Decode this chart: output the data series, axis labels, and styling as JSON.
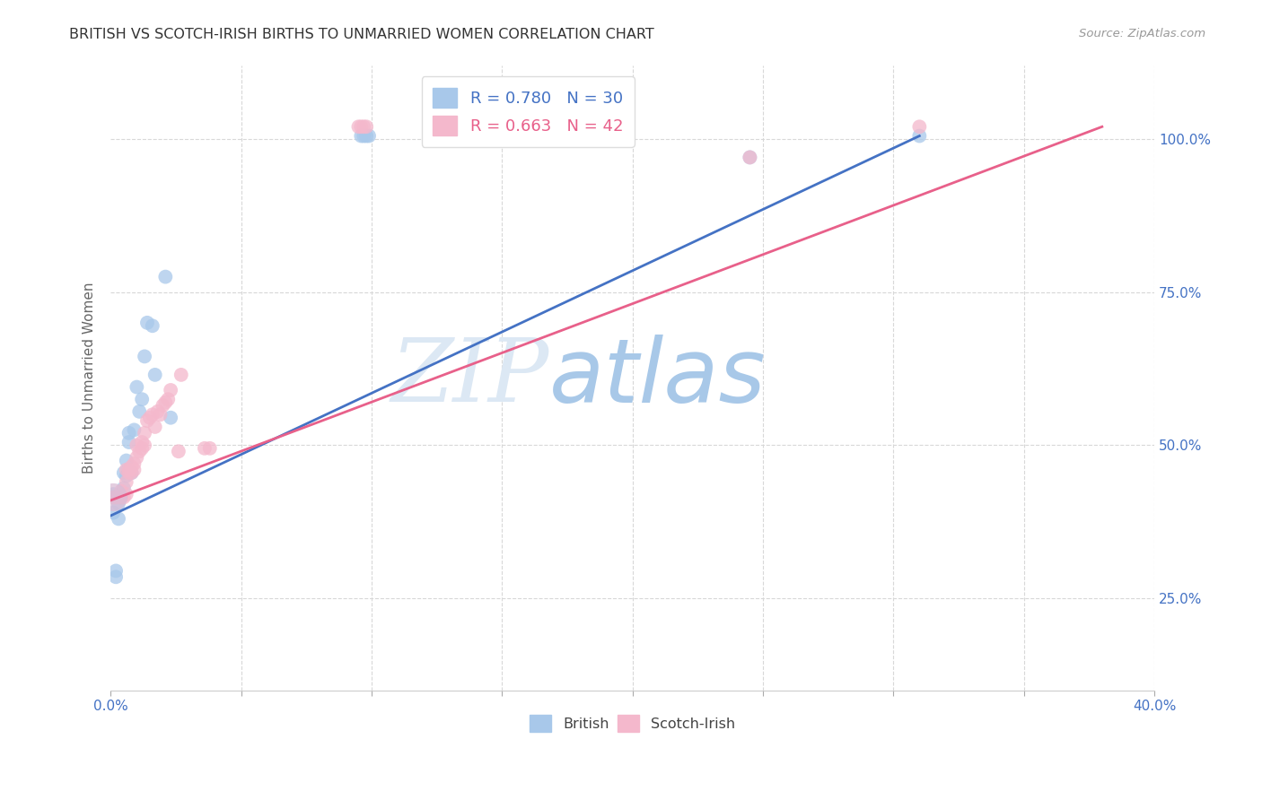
{
  "title": "BRITISH VS SCOTCH-IRISH BIRTHS TO UNMARRIED WOMEN CORRELATION CHART",
  "source": "Source: ZipAtlas.com",
  "ylabel": "Births to Unmarried Women",
  "ytick_labels": [
    "25.0%",
    "50.0%",
    "75.0%",
    "100.0%"
  ],
  "watermark_zip": "ZIP",
  "watermark_atlas": "atlas",
  "legend_british": "R = 0.780   N = 30",
  "legend_scotch": "R = 0.663   N = 42",
  "british_color": "#a8c8ea",
  "scotch_color": "#f4b8cc",
  "british_line_color": "#4472c4",
  "scotch_line_color": "#e8608a",
  "xlim": [
    0.0,
    0.4
  ],
  "ylim": [
    0.1,
    1.12
  ],
  "background_color": "#ffffff",
  "grid_color": "#d8d8d8",
  "british_x": [
    0.001,
    0.001,
    0.002,
    0.002,
    0.003,
    0.003,
    0.004,
    0.005,
    0.005,
    0.006,
    0.006,
    0.007,
    0.007,
    0.008,
    0.009,
    0.01,
    0.011,
    0.012,
    0.013,
    0.014,
    0.016,
    0.017,
    0.021,
    0.023,
    0.096,
    0.097,
    0.098,
    0.099,
    0.245,
    0.31
  ],
  "british_y": [
    0.39,
    0.42,
    0.285,
    0.295,
    0.38,
    0.405,
    0.415,
    0.43,
    0.455,
    0.45,
    0.475,
    0.505,
    0.52,
    0.455,
    0.525,
    0.595,
    0.555,
    0.575,
    0.645,
    0.7,
    0.695,
    0.615,
    0.775,
    0.545,
    1.005,
    1.005,
    1.005,
    1.005,
    0.97,
    1.005
  ],
  "scotch_x": [
    0.001,
    0.002,
    0.003,
    0.004,
    0.004,
    0.005,
    0.006,
    0.006,
    0.006,
    0.007,
    0.007,
    0.008,
    0.008,
    0.009,
    0.009,
    0.01,
    0.01,
    0.011,
    0.012,
    0.012,
    0.013,
    0.013,
    0.014,
    0.015,
    0.016,
    0.017,
    0.018,
    0.019,
    0.02,
    0.021,
    0.022,
    0.023,
    0.026,
    0.027,
    0.036,
    0.038,
    0.095,
    0.096,
    0.097,
    0.098,
    0.245,
    0.31
  ],
  "scotch_y": [
    0.415,
    0.415,
    0.415,
    0.415,
    0.425,
    0.415,
    0.42,
    0.44,
    0.46,
    0.455,
    0.46,
    0.455,
    0.465,
    0.46,
    0.47,
    0.48,
    0.5,
    0.49,
    0.495,
    0.505,
    0.5,
    0.52,
    0.54,
    0.545,
    0.55,
    0.53,
    0.555,
    0.55,
    0.565,
    0.57,
    0.575,
    0.59,
    0.49,
    0.615,
    0.495,
    0.495,
    1.02,
    1.02,
    1.02,
    1.02,
    0.97,
    1.02
  ],
  "british_line_x": [
    0.0,
    0.31
  ],
  "british_line_y": [
    0.385,
    1.005
  ],
  "scotch_line_x": [
    0.0,
    0.38
  ],
  "scotch_line_y": [
    0.41,
    1.02
  ],
  "marker_size": 130
}
